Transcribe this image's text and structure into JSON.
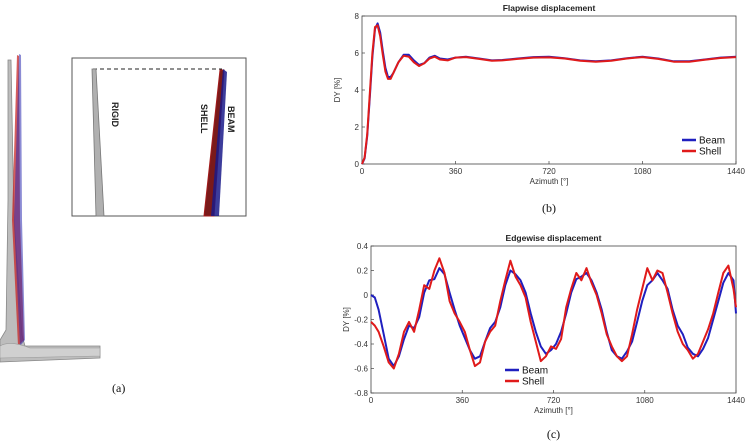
{
  "panel_a": {
    "caption": "(a)",
    "inset_labels": [
      "RIGID",
      "SHELL",
      "BEAM"
    ]
  },
  "chart_data": [
    {
      "type": "line",
      "title": "Flapwise displacement",
      "xlabel": "Azimuth [°]",
      "ylabel": "DY [%]",
      "caption": "(b)",
      "xlim": [
        0,
        1440
      ],
      "ylim": [
        0,
        8
      ],
      "xticks": [
        "0",
        "360",
        "720",
        "1080",
        "1440"
      ],
      "yticks": [
        "0",
        "2",
        "4",
        "6",
        "8"
      ],
      "legend_position": "bottom-right",
      "series": [
        {
          "name": "Beam",
          "color": "#1f1fbf",
          "x": [
            0,
            10,
            20,
            30,
            40,
            50,
            60,
            70,
            80,
            90,
            100,
            110,
            120,
            140,
            160,
            180,
            200,
            220,
            240,
            260,
            280,
            300,
            330,
            360,
            400,
            450,
            500,
            540,
            600,
            660,
            720,
            780,
            840,
            900,
            960,
            1020,
            1080,
            1140,
            1200,
            1260,
            1320,
            1380,
            1440
          ],
          "y": [
            0.0,
            0.3,
            1.5,
            3.6,
            5.8,
            7.3,
            7.6,
            7.1,
            6.1,
            5.2,
            4.7,
            4.7,
            4.9,
            5.5,
            5.9,
            5.9,
            5.6,
            5.35,
            5.45,
            5.75,
            5.85,
            5.7,
            5.65,
            5.75,
            5.8,
            5.7,
            5.6,
            5.62,
            5.7,
            5.78,
            5.8,
            5.72,
            5.6,
            5.55,
            5.6,
            5.72,
            5.8,
            5.7,
            5.55,
            5.55,
            5.65,
            5.75,
            5.8
          ]
        },
        {
          "name": "Shell",
          "color": "#e01a1a",
          "x": [
            0,
            10,
            20,
            30,
            40,
            50,
            60,
            70,
            80,
            90,
            100,
            110,
            120,
            140,
            160,
            180,
            200,
            220,
            240,
            260,
            280,
            300,
            330,
            360,
            400,
            450,
            500,
            540,
            600,
            660,
            720,
            780,
            840,
            900,
            960,
            1020,
            1080,
            1140,
            1200,
            1260,
            1320,
            1380,
            1440
          ],
          "y": [
            0.0,
            0.35,
            1.6,
            3.8,
            6.0,
            7.4,
            7.5,
            6.9,
            5.9,
            5.0,
            4.6,
            4.6,
            4.9,
            5.5,
            5.85,
            5.8,
            5.5,
            5.3,
            5.45,
            5.7,
            5.8,
            5.65,
            5.6,
            5.75,
            5.78,
            5.68,
            5.58,
            5.6,
            5.68,
            5.75,
            5.76,
            5.7,
            5.58,
            5.53,
            5.58,
            5.7,
            5.78,
            5.68,
            5.53,
            5.53,
            5.63,
            5.73,
            5.78
          ]
        }
      ]
    },
    {
      "type": "line",
      "title": "Edgewise displacement",
      "xlabel": "Azimuth [°]",
      "ylabel": "DY [%]",
      "caption": "(c)",
      "xlim": [
        0,
        1440
      ],
      "ylim": [
        -0.8,
        0.4
      ],
      "xticks": [
        "0",
        "360",
        "720",
        "1080",
        "1440"
      ],
      "yticks": [
        "-0.8",
        "-0.6",
        "-0.4",
        "-0.2",
        "0",
        "0.2",
        "0.4"
      ],
      "legend_position": "bottom-left",
      "series": [
        {
          "name": "Beam",
          "color": "#1f1fbf",
          "x": [
            0,
            15,
            30,
            50,
            70,
            90,
            110,
            130,
            150,
            170,
            190,
            210,
            230,
            250,
            270,
            290,
            310,
            330,
            350,
            370,
            390,
            410,
            430,
            450,
            470,
            490,
            510,
            530,
            550,
            570,
            590,
            610,
            630,
            650,
            670,
            690,
            710,
            730,
            750,
            770,
            790,
            810,
            830,
            850,
            870,
            890,
            910,
            930,
            950,
            970,
            990,
            1010,
            1030,
            1050,
            1070,
            1090,
            1110,
            1130,
            1150,
            1170,
            1190,
            1210,
            1230,
            1250,
            1270,
            1290,
            1310,
            1330,
            1350,
            1370,
            1390,
            1410,
            1430,
            1440
          ],
          "y": [
            0.0,
            -0.02,
            -0.12,
            -0.32,
            -0.52,
            -0.58,
            -0.5,
            -0.36,
            -0.25,
            -0.27,
            -0.18,
            0.02,
            0.12,
            0.13,
            0.22,
            0.17,
            0.02,
            -0.12,
            -0.25,
            -0.35,
            -0.45,
            -0.52,
            -0.5,
            -0.38,
            -0.27,
            -0.22,
            -0.1,
            0.08,
            0.2,
            0.17,
            0.12,
            0.02,
            -0.15,
            -0.3,
            -0.42,
            -0.48,
            -0.45,
            -0.4,
            -0.3,
            -0.15,
            0.02,
            0.13,
            0.15,
            0.18,
            0.12,
            0.02,
            -0.12,
            -0.3,
            -0.45,
            -0.5,
            -0.52,
            -0.46,
            -0.38,
            -0.22,
            -0.05,
            0.08,
            0.12,
            0.18,
            0.12,
            0.05,
            -0.12,
            -0.25,
            -0.32,
            -0.43,
            -0.48,
            -0.5,
            -0.44,
            -0.35,
            -0.2,
            -0.05,
            0.1,
            0.18,
            0.12,
            -0.15
          ]
        },
        {
          "name": "Shell",
          "color": "#e01a1a",
          "x": [
            0,
            15,
            30,
            50,
            70,
            90,
            110,
            130,
            150,
            170,
            190,
            210,
            230,
            250,
            270,
            290,
            310,
            330,
            350,
            370,
            390,
            410,
            430,
            450,
            470,
            490,
            510,
            530,
            550,
            570,
            590,
            610,
            630,
            650,
            670,
            690,
            710,
            730,
            750,
            770,
            790,
            810,
            830,
            850,
            870,
            890,
            910,
            930,
            950,
            970,
            990,
            1010,
            1030,
            1050,
            1070,
            1090,
            1110,
            1130,
            1150,
            1170,
            1190,
            1210,
            1230,
            1250,
            1270,
            1290,
            1310,
            1330,
            1350,
            1370,
            1390,
            1410,
            1430,
            1440
          ],
          "y": [
            -0.22,
            -0.25,
            -0.3,
            -0.42,
            -0.55,
            -0.6,
            -0.48,
            -0.3,
            -0.22,
            -0.3,
            -0.12,
            0.08,
            0.05,
            0.2,
            0.3,
            0.18,
            -0.05,
            -0.15,
            -0.22,
            -0.3,
            -0.45,
            -0.58,
            -0.55,
            -0.38,
            -0.3,
            -0.25,
            -0.05,
            0.12,
            0.28,
            0.15,
            0.08,
            -0.02,
            -0.22,
            -0.38,
            -0.54,
            -0.5,
            -0.42,
            -0.44,
            -0.36,
            -0.1,
            0.05,
            0.18,
            0.12,
            0.22,
            0.1,
            0.0,
            -0.15,
            -0.32,
            -0.42,
            -0.5,
            -0.54,
            -0.5,
            -0.32,
            -0.12,
            0.05,
            0.22,
            0.12,
            0.2,
            0.18,
            0.02,
            -0.15,
            -0.3,
            -0.4,
            -0.45,
            -0.52,
            -0.48,
            -0.38,
            -0.28,
            -0.15,
            0.02,
            0.18,
            0.24,
            0.05,
            -0.1
          ]
        }
      ]
    }
  ]
}
